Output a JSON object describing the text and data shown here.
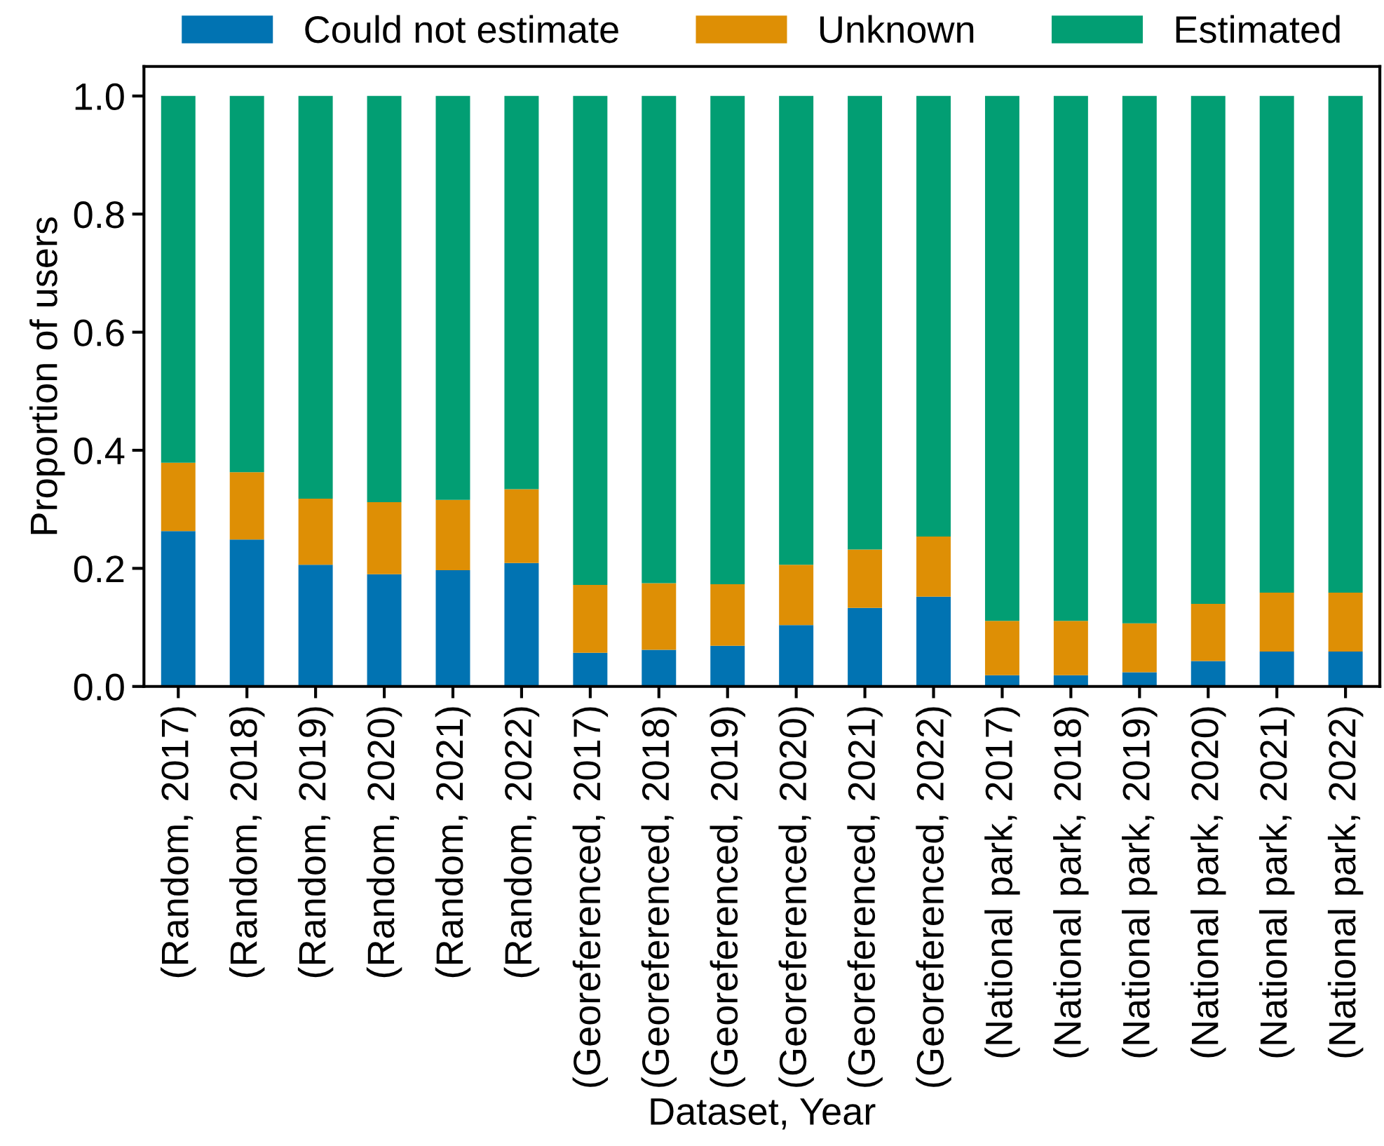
{
  "chart_data": {
    "type": "bar",
    "stacked": true,
    "xlabel": "Dataset, Year",
    "ylabel": "Proportion of users",
    "categories": [
      "(Random, 2017)",
      "(Random, 2018)",
      "(Random, 2019)",
      "(Random, 2020)",
      "(Random, 2021)",
      "(Random, 2022)",
      "(Georeferenced, 2017)",
      "(Georeferenced, 2018)",
      "(Georeferenced, 2019)",
      "(Georeferenced, 2020)",
      "(Georeferenced, 2021)",
      "(Georeferenced, 2022)",
      "(National park, 2017)",
      "(National park, 2018)",
      "(National park, 2019)",
      "(National park, 2020)",
      "(National park, 2021)",
      "(National park, 2022)"
    ],
    "series": [
      {
        "name": "Could not estimate",
        "color": "#0173b2",
        "values": [
          0.263,
          0.249,
          0.206,
          0.19,
          0.197,
          0.209,
          0.057,
          0.062,
          0.069,
          0.104,
          0.133,
          0.152,
          0.019,
          0.019,
          0.024,
          0.043,
          0.059,
          0.059
        ]
      },
      {
        "name": "Unknown",
        "color": "#de8f05",
        "values": [
          0.116,
          0.114,
          0.112,
          0.122,
          0.119,
          0.125,
          0.115,
          0.113,
          0.104,
          0.102,
          0.099,
          0.102,
          0.092,
          0.092,
          0.083,
          0.097,
          0.1,
          0.1
        ]
      },
      {
        "name": "Estimated",
        "color": "#029e73",
        "values": [
          0.621,
          0.637,
          0.682,
          0.688,
          0.684,
          0.666,
          0.828,
          0.825,
          0.827,
          0.794,
          0.768,
          0.746,
          0.889,
          0.889,
          0.893,
          0.86,
          0.841,
          0.841
        ]
      }
    ],
    "ylim": [
      0,
      1.05
    ],
    "yticks": [
      {
        "value": 0,
        "label": "0.0"
      },
      0.2,
      0.4,
      0.6,
      0.8,
      {
        "value": 1,
        "label": "1.0"
      }
    ],
    "legend": "top"
  }
}
